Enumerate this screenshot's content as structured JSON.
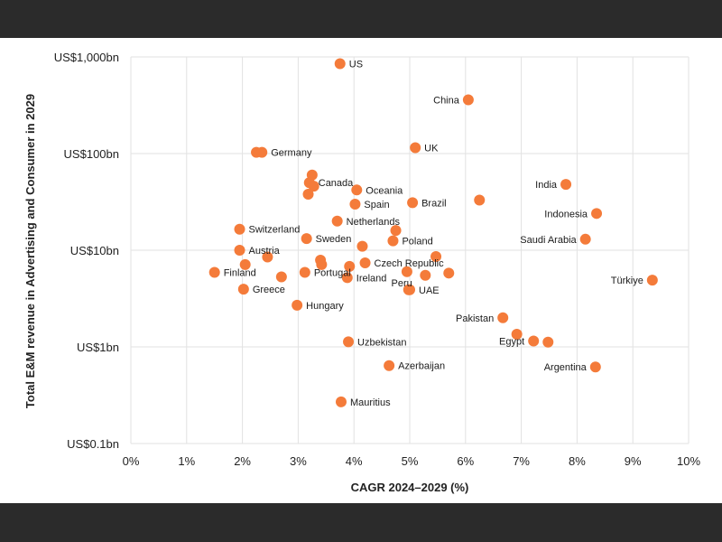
{
  "colors": {
    "accent": "#f47b3a",
    "grid": "#e2e2e2",
    "frame": "#2b2b2b"
  },
  "chart_data": {
    "type": "scatter",
    "title": "",
    "xlabel": "CAGR 2024–2029 (%)",
    "ylabel": "Total E&M revenue in Advertising and Consumer in 2029",
    "xlim": [
      0,
      10
    ],
    "ylim": [
      0.1,
      1000
    ],
    "y_scale": "log",
    "grid": true,
    "x_ticks": [
      {
        "value": 0,
        "label": "0%"
      },
      {
        "value": 1,
        "label": "1%"
      },
      {
        "value": 2,
        "label": "2%"
      },
      {
        "value": 3,
        "label": "3%"
      },
      {
        "value": 4,
        "label": "4%"
      },
      {
        "value": 5,
        "label": "5%"
      },
      {
        "value": 6,
        "label": "6%"
      },
      {
        "value": 7,
        "label": "7%"
      },
      {
        "value": 8,
        "label": "8%"
      },
      {
        "value": 9,
        "label": "9%"
      },
      {
        "value": 10,
        "label": "10%"
      }
    ],
    "y_ticks": [
      {
        "value": 1000,
        "label": "US$1,000bn"
      },
      {
        "value": 100,
        "label": "US$100bn"
      },
      {
        "value": 10,
        "label": "US$10bn"
      },
      {
        "value": 1,
        "label": "US$1bn"
      },
      {
        "value": 0.1,
        "label": "US$0.1bn"
      }
    ],
    "points": [
      {
        "x": 3.75,
        "y": 850,
        "label": "US",
        "pos": "right"
      },
      {
        "x": 6.05,
        "y": 360,
        "label": "China",
        "pos": "left"
      },
      {
        "x": 5.1,
        "y": 115,
        "label": "UK",
        "pos": "right"
      },
      {
        "x": 2.25,
        "y": 103,
        "label": "",
        "pos": "right"
      },
      {
        "x": 2.35,
        "y": 103,
        "label": "Germany",
        "pos": "right"
      },
      {
        "x": 3.25,
        "y": 60,
        "label": "",
        "pos": "right"
      },
      {
        "x": 3.2,
        "y": 50,
        "label": "Canada",
        "pos": "right"
      },
      {
        "x": 3.28,
        "y": 46,
        "label": "",
        "pos": "right"
      },
      {
        "x": 3.18,
        "y": 38,
        "label": "",
        "pos": "right"
      },
      {
        "x": 4.05,
        "y": 42,
        "label": "Oceania",
        "pos": "right"
      },
      {
        "x": 4.02,
        "y": 30,
        "label": "Spain",
        "pos": "right"
      },
      {
        "x": 5.05,
        "y": 31,
        "label": "Brazil",
        "pos": "right"
      },
      {
        "x": 6.25,
        "y": 33,
        "label": "",
        "pos": "right"
      },
      {
        "x": 7.8,
        "y": 48,
        "label": "India",
        "pos": "left"
      },
      {
        "x": 8.35,
        "y": 24,
        "label": "Indonesia",
        "pos": "left"
      },
      {
        "x": 1.95,
        "y": 16.5,
        "label": "Switzerland",
        "pos": "right"
      },
      {
        "x": 3.7,
        "y": 20,
        "label": "Netherlands",
        "pos": "right"
      },
      {
        "x": 3.15,
        "y": 13.2,
        "label": "Sweden",
        "pos": "right"
      },
      {
        "x": 4.15,
        "y": 11,
        "label": "",
        "pos": "right"
      },
      {
        "x": 4.75,
        "y": 16,
        "label": "",
        "pos": "right"
      },
      {
        "x": 4.7,
        "y": 12.5,
        "label": "Poland",
        "pos": "right"
      },
      {
        "x": 8.15,
        "y": 13,
        "label": "Saudi Arabia",
        "pos": "left"
      },
      {
        "x": 1.95,
        "y": 10,
        "label": "Austria",
        "pos": "right"
      },
      {
        "x": 2.45,
        "y": 8.5,
        "label": "",
        "pos": "right"
      },
      {
        "x": 2.05,
        "y": 7.1,
        "label": "",
        "pos": "right"
      },
      {
        "x": 1.5,
        "y": 5.9,
        "label": "Finland",
        "pos": "right"
      },
      {
        "x": 2.7,
        "y": 5.3,
        "label": "",
        "pos": "right"
      },
      {
        "x": 3.12,
        "y": 5.9,
        "label": "Portugal",
        "pos": "right"
      },
      {
        "x": 3.4,
        "y": 7.9,
        "label": "",
        "pos": "right"
      },
      {
        "x": 3.42,
        "y": 7.1,
        "label": "",
        "pos": "right"
      },
      {
        "x": 3.92,
        "y": 6.8,
        "label": "",
        "pos": "right"
      },
      {
        "x": 3.88,
        "y": 5.2,
        "label": "Ireland",
        "pos": "right"
      },
      {
        "x": 4.2,
        "y": 7.4,
        "label": "Czech Republic",
        "pos": "right"
      },
      {
        "x": 5.47,
        "y": 8.6,
        "label": "",
        "pos": "right"
      },
      {
        "x": 4.95,
        "y": 6.0,
        "label": "",
        "pos": "right"
      },
      {
        "x": 5.28,
        "y": 5.5,
        "label": "",
        "pos": "right"
      },
      {
        "x": 5.7,
        "y": 5.8,
        "label": "",
        "pos": "right"
      },
      {
        "x": 4.98,
        "y": 3.9,
        "label": "Peru",
        "pos": "up-left"
      },
      {
        "x": 5.0,
        "y": 3.9,
        "label": "UAE",
        "pos": "right"
      },
      {
        "x": 2.02,
        "y": 3.95,
        "label": "Greece",
        "pos": "right"
      },
      {
        "x": 9.35,
        "y": 4.9,
        "label": "Türkiye",
        "pos": "left"
      },
      {
        "x": 2.98,
        "y": 2.7,
        "label": "Hungary",
        "pos": "right"
      },
      {
        "x": 6.67,
        "y": 2.0,
        "label": "Pakistan",
        "pos": "left"
      },
      {
        "x": 6.92,
        "y": 1.35,
        "label": "",
        "pos": "left"
      },
      {
        "x": 7.22,
        "y": 1.15,
        "label": "Egypt",
        "pos": "left"
      },
      {
        "x": 7.48,
        "y": 1.12,
        "label": "",
        "pos": "left"
      },
      {
        "x": 3.9,
        "y": 1.13,
        "label": "Uzbekistan",
        "pos": "right"
      },
      {
        "x": 4.63,
        "y": 0.64,
        "label": "Azerbaijan",
        "pos": "right"
      },
      {
        "x": 8.33,
        "y": 0.62,
        "label": "Argentina",
        "pos": "left"
      },
      {
        "x": 3.77,
        "y": 0.27,
        "label": "Mauritius",
        "pos": "right"
      }
    ]
  }
}
